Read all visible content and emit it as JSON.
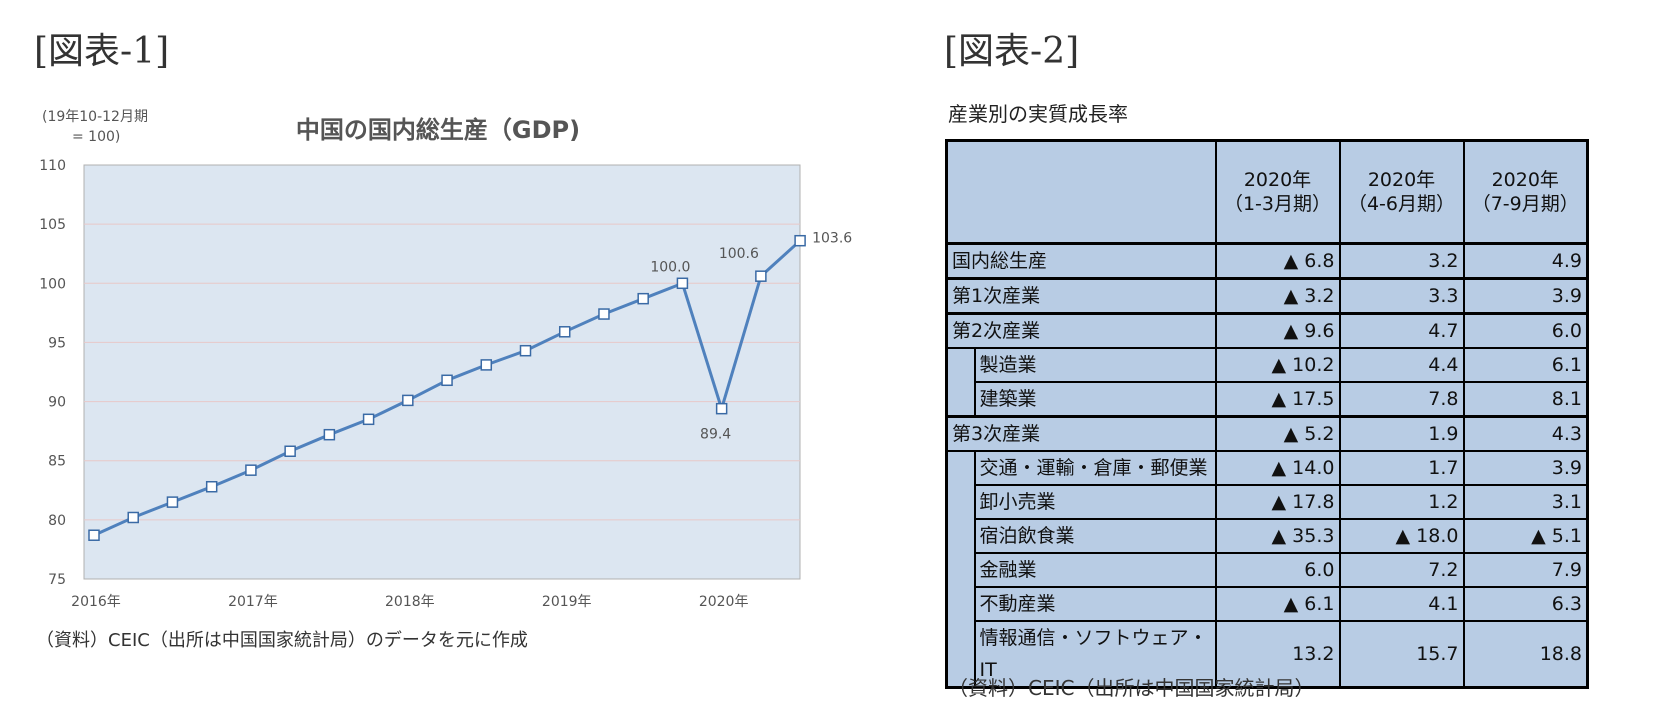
{
  "figure1": {
    "label": "[図表-1]",
    "chart_data": {
      "type": "line",
      "title": "中国の国内総生産（GDP)",
      "ylabel_line1": "(19年10-12月期",
      "ylabel_line2": "= 100)",
      "ylim": [
        75,
        110
      ],
      "yticks": [
        75,
        80,
        85,
        90,
        95,
        100,
        105,
        110
      ],
      "x_ticks": [
        "2016年",
        "2017年",
        "2018年",
        "2019年",
        "2020年"
      ],
      "x_tick_index": [
        0,
        4,
        8,
        12,
        16
      ],
      "x": [
        "2016Q1",
        "2016Q2",
        "2016Q3",
        "2016Q4",
        "2017Q1",
        "2017Q2",
        "2017Q3",
        "2017Q4",
        "2018Q1",
        "2018Q2",
        "2018Q3",
        "2018Q4",
        "2019Q1",
        "2019Q2",
        "2019Q3",
        "2019Q4",
        "2020Q1",
        "2020Q2",
        "2020Q3"
      ],
      "values": [
        78.7,
        80.2,
        81.5,
        82.8,
        84.2,
        85.8,
        87.2,
        88.5,
        90.1,
        91.8,
        93.1,
        94.3,
        95.9,
        97.4,
        98.7,
        100.0,
        89.4,
        100.6,
        103.6
      ],
      "data_labels": [
        {
          "index": 15,
          "text": "100.0"
        },
        {
          "index": 16,
          "text": "89.4"
        },
        {
          "index": 17,
          "text": "100.6"
        },
        {
          "index": 18,
          "text": "103.6"
        }
      ],
      "grid": true,
      "colors": {
        "line": "#4f81bd",
        "plot_bg": "#dce6f1",
        "grid": "#e8c8c8",
        "marker_fill": "#ffffff"
      }
    },
    "source": "（資料）CEIC（出所は中国国家統計局）のデータを元に作成"
  },
  "figure2": {
    "label": "[図表-2]",
    "title": "産業別の実質成長率",
    "columns": [
      {
        "line1": "2020年",
        "line2": "（1-3月期）"
      },
      {
        "line1": "2020年",
        "line2": "（4-6月期）"
      },
      {
        "line1": "2020年",
        "line2": "（7-9月期）"
      }
    ],
    "rows": [
      {
        "label": "国内総生産",
        "indent": false,
        "values": [
          "▲ 6.8",
          "3.2",
          "4.9"
        ]
      },
      {
        "label": "第1次産業",
        "indent": false,
        "values": [
          "▲ 3.2",
          "3.3",
          "3.9"
        ]
      },
      {
        "label": "第2次産業",
        "indent": false,
        "values": [
          "▲ 9.6",
          "4.7",
          "6.0"
        ]
      },
      {
        "label": "製造業",
        "indent": true,
        "values": [
          "▲ 10.2",
          "4.4",
          "6.1"
        ]
      },
      {
        "label": "建築業",
        "indent": true,
        "values": [
          "▲ 17.5",
          "7.8",
          "8.1"
        ]
      },
      {
        "label": "第3次産業",
        "indent": false,
        "values": [
          "▲ 5.2",
          "1.9",
          "4.3"
        ]
      },
      {
        "label": "交通・運輸・倉庫・郵便業",
        "indent": true,
        "values": [
          "▲ 14.0",
          "1.7",
          "3.9"
        ]
      },
      {
        "label": "卸小売業",
        "indent": true,
        "values": [
          "▲ 17.8",
          "1.2",
          "3.1"
        ]
      },
      {
        "label": "宿泊飲食業",
        "indent": true,
        "values": [
          "▲ 35.3",
          "▲ 18.0",
          "▲ 5.1"
        ]
      },
      {
        "label": "金融業",
        "indent": true,
        "values": [
          "6.0",
          "7.2",
          "7.9"
        ]
      },
      {
        "label": "不動産業",
        "indent": true,
        "values": [
          "▲ 6.1",
          "4.1",
          "6.3"
        ]
      },
      {
        "label": "情報通信・ソフトウェア・IT",
        "indent": true,
        "values": [
          "13.2",
          "15.7",
          "18.8"
        ]
      }
    ],
    "source": "（資料）CEIC（出所は中国国家統計局）"
  }
}
